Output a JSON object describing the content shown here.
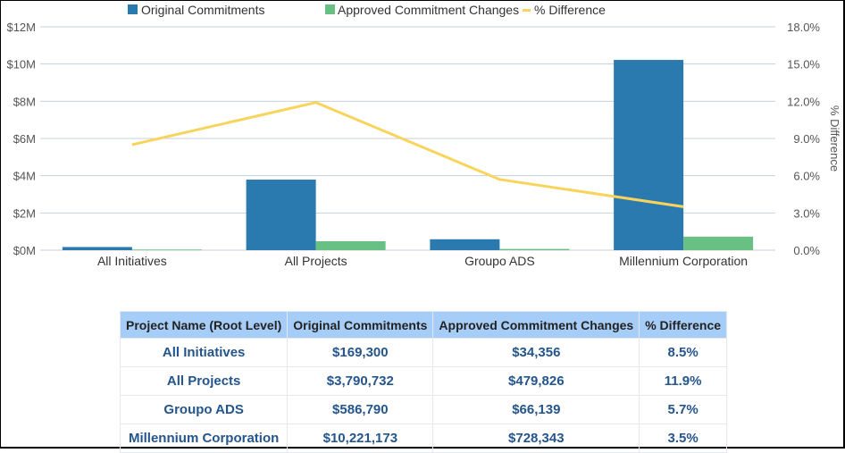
{
  "chart_data": {
    "type": "bar",
    "title": "",
    "categories": [
      "All Initiatives",
      "All Projects",
      "Groupo ADS",
      "Millennium Corporation"
    ],
    "series": [
      {
        "name": "Original Commitments",
        "type": "bar",
        "axis": "left",
        "color": "#2a7ab0",
        "values": [
          169300,
          3790732,
          586790,
          10221173
        ]
      },
      {
        "name": "Approved Commitment Changes",
        "type": "bar",
        "axis": "left",
        "color": "#68c182",
        "values": [
          34356,
          479826,
          66139,
          728343
        ]
      },
      {
        "name": "% Difference",
        "type": "line",
        "axis": "right",
        "color": "#f9d45c",
        "values": [
          8.5,
          11.9,
          5.7,
          3.5
        ]
      }
    ],
    "y_left": {
      "label": "",
      "ylim": [
        0,
        12000000
      ],
      "ticks": [
        "$0M",
        "$2M",
        "$4M",
        "$6M",
        "$8M",
        "$10M",
        "$12M"
      ]
    },
    "y_right": {
      "label": "% Difference",
      "ylim": [
        0,
        18
      ],
      "ticks": [
        "0.0%",
        "3.0%",
        "6.0%",
        "9.0%",
        "12.0%",
        "15.0%",
        "18.0%"
      ]
    },
    "grid": true,
    "legend": "top-center"
  },
  "table": {
    "headers": [
      "Project Name (Root Level)",
      "Original Commitments",
      "Approved Commitment Changes",
      "% Difference"
    ],
    "rows": [
      [
        "All Initiatives",
        "$169,300",
        "$34,356",
        "8.5%"
      ],
      [
        "All Projects",
        "$3,790,732",
        "$479,826",
        "11.9%"
      ],
      [
        "Groupo ADS",
        "$586,790",
        "$66,139",
        "5.7%"
      ],
      [
        "Millennium Corporation",
        "$10,221,173",
        "$728,343",
        "3.5%"
      ]
    ]
  }
}
